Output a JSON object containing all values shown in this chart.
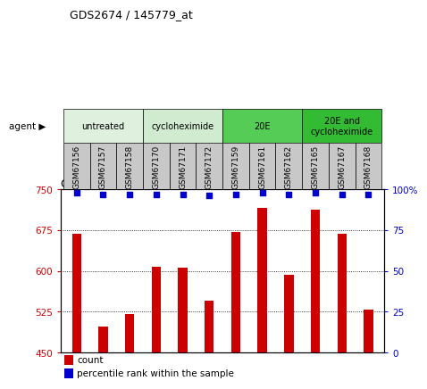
{
  "title": "GDS2674 / 145779_at",
  "samples": [
    "GSM67156",
    "GSM67157",
    "GSM67158",
    "GSM67170",
    "GSM67171",
    "GSM67172",
    "GSM67159",
    "GSM67161",
    "GSM67162",
    "GSM67165",
    "GSM67167",
    "GSM67168"
  ],
  "counts": [
    668,
    497,
    520,
    608,
    605,
    545,
    672,
    716,
    592,
    713,
    668,
    528
  ],
  "percentile": [
    98,
    97,
    97,
    97,
    97,
    96,
    97,
    98,
    97,
    98,
    97,
    97
  ],
  "ymin": 450,
  "ymax": 750,
  "yticks_left": [
    450,
    525,
    600,
    675,
    750
  ],
  "yticks_right": [
    0,
    25,
    50,
    75,
    100
  ],
  "bar_color": "#cc0000",
  "dot_color": "#0000cc",
  "groups": [
    {
      "label": "untreated",
      "start": 0,
      "end": 3,
      "color": "#dff0df"
    },
    {
      "label": "cycloheximide",
      "start": 3,
      "end": 6,
      "color": "#d0ebd0"
    },
    {
      "label": "20E",
      "start": 6,
      "end": 9,
      "color": "#55cc55"
    },
    {
      "label": "20E and\ncycloheximide",
      "start": 9,
      "end": 12,
      "color": "#33bb33"
    }
  ],
  "tick_bg_color": "#c8c8c8",
  "bar_width": 0.35,
  "background_color": "#ffffff"
}
